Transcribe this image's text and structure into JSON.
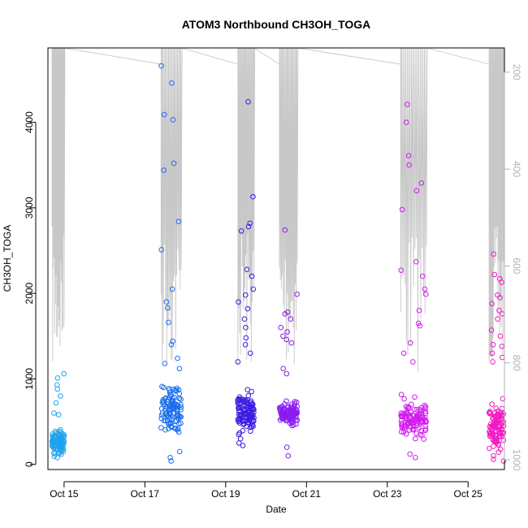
{
  "chart_data": {
    "type": "scatter",
    "title": "ATOM3 Northbound CH3OH_TOGA",
    "xlabel": "Date",
    "ylabel": "CH3OH_TOGA",
    "xlim": [
      14.6,
      25.9
    ],
    "ylim": [
      -60,
      4870
    ],
    "x_ticks": [
      15,
      17,
      19,
      21,
      23,
      25
    ],
    "x_tick_labels": [
      "Oct 15",
      "Oct 17",
      "Oct 19",
      "Oct 21",
      "Oct 23",
      "Oct 25"
    ],
    "y_ticks": [
      0,
      1000,
      2000,
      3000,
      4000
    ],
    "y_tick_labels": [
      "0",
      "1000",
      "2000",
      "3000",
      "4000"
    ],
    "right_axis": {
      "description": "secondary axis (pressure, inverted)",
      "ylim": [
        1020,
        150
      ],
      "ticks": [
        200,
        400,
        600,
        800,
        1000
      ],
      "tick_labels": [
        "200",
        "400",
        "600",
        "800",
        "1000"
      ],
      "color": "#b3b3b3"
    },
    "clusters": [
      {
        "date": 14.85,
        "halfwidth": 0.15,
        "median": 250,
        "spread": 120,
        "color": "#1fa2f2",
        "outliers": [
          600,
          720,
          800,
          930,
          1010,
          1060,
          880,
          580
        ]
      },
      {
        "date": 17.65,
        "halfwidth": 0.25,
        "median": 650,
        "spread": 220,
        "color": "#1a6ef0",
        "outliers": [
          4660,
          3440,
          2840,
          4460,
          4090,
          4030,
          3520,
          2510,
          2050,
          1900,
          1830,
          1660,
          1440,
          1400,
          1240,
          1180,
          1120,
          80,
          40,
          150
        ]
      },
      {
        "date": 19.5,
        "halfwidth": 0.2,
        "median": 600,
        "spread": 200,
        "color": "#3a1be0",
        "outliers": [
          4240,
          3130,
          2820,
          2780,
          2730,
          2280,
          2200,
          2050,
          1980,
          1900,
          1820,
          1700,
          1600,
          1480,
          1400,
          1300,
          1200,
          300,
          250,
          220
        ]
      },
      {
        "date": 20.55,
        "halfwidth": 0.22,
        "median": 600,
        "spread": 120,
        "color": "#8a1bf0",
        "outliers": [
          2740,
          1990,
          1780,
          1760,
          1700,
          1600,
          1550,
          1500,
          1460,
          1420,
          1120,
          1060,
          100,
          200
        ]
      },
      {
        "date": 23.65,
        "halfwidth": 0.32,
        "median": 530,
        "spread": 200,
        "color": "#d21af0",
        "outliers": [
          4210,
          4000,
          3610,
          3500,
          3290,
          3200,
          2980,
          2370,
          2270,
          2200,
          2050,
          1990,
          1800,
          1650,
          1620,
          1420,
          1300,
          1200,
          80,
          120
        ]
      },
      {
        "date": 25.7,
        "halfwidth": 0.18,
        "median": 450,
        "spread": 230,
        "color": "#f21ac4",
        "outliers": [
          2460,
          2220,
          2170,
          2130,
          1980,
          1950,
          1880,
          1800,
          1760,
          1700,
          1570,
          1500,
          1400,
          1380,
          1300,
          1250,
          1200,
          60,
          40,
          100
        ]
      }
    ]
  }
}
